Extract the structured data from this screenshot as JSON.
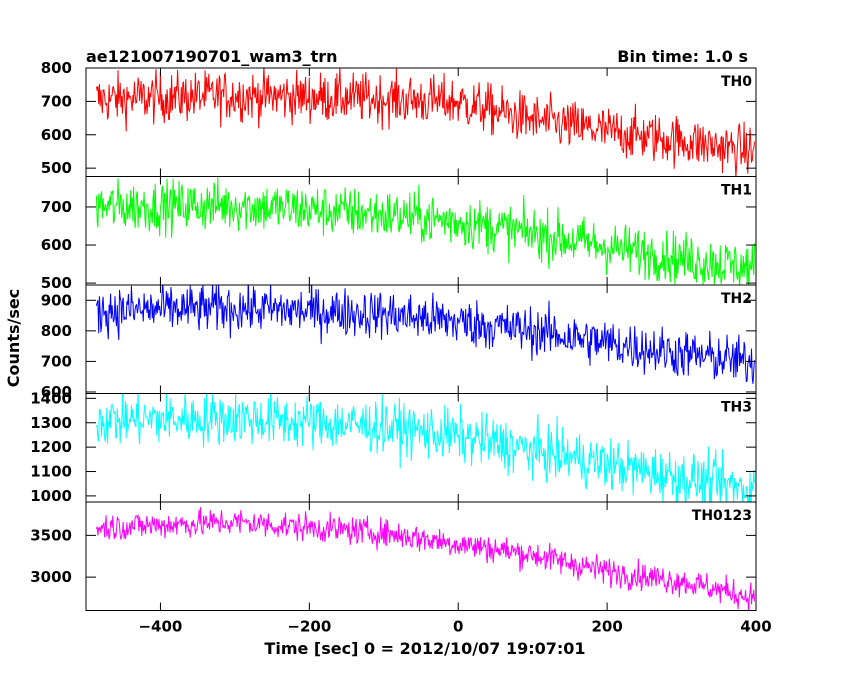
{
  "header": {
    "title": "ae121007190701_wam3_trn",
    "bin_time": "Bin time: 1.0 s"
  },
  "axes": {
    "xlabel": "Time [sec] 0 = 2012/10/07 19:07:01",
    "ylabel": "Counts/sec"
  },
  "chart_data": {
    "type": "line",
    "title": "ae121007190701_wam3_trn",
    "subtitle": "Bin time: 1.0 s",
    "xlabel": "Time [sec] 0 = 2012/10/07 19:07:01",
    "ylabel": "Counts/sec",
    "xlim": [
      -500,
      400
    ],
    "x_ticks": [
      -400,
      -200,
      0,
      200,
      400
    ],
    "x_step": 1.0,
    "grid": false,
    "panels": [
      {
        "name": "TH0",
        "color": "#ff0000",
        "ylim": [
          475,
          800
        ],
        "y_ticks": [
          500,
          600,
          700,
          800
        ],
        "noise": 38,
        "trend": [
          [
            -500,
            705
          ],
          [
            -300,
            718
          ],
          [
            -100,
            708
          ],
          [
            0,
            698
          ],
          [
            100,
            645
          ],
          [
            200,
            610
          ],
          [
            300,
            582
          ],
          [
            400,
            548
          ]
        ]
      },
      {
        "name": "TH1",
        "color": "#00ff00",
        "ylim": [
          495,
          780
        ],
        "y_ticks": [
          500,
          600,
          700
        ],
        "noise": 34,
        "trend": [
          [
            -500,
            700
          ],
          [
            -300,
            705
          ],
          [
            -100,
            680
          ],
          [
            0,
            662
          ],
          [
            100,
            630
          ],
          [
            200,
            595
          ],
          [
            300,
            565
          ],
          [
            400,
            540
          ]
        ]
      },
      {
        "name": "TH2",
        "color": "#0000ff",
        "ylim": [
          595,
          950
        ],
        "y_ticks": [
          600,
          700,
          800,
          900
        ],
        "noise": 40,
        "trend": [
          [
            -500,
            865
          ],
          [
            -300,
            875
          ],
          [
            -100,
            855
          ],
          [
            0,
            830
          ],
          [
            100,
            800
          ],
          [
            200,
            760
          ],
          [
            300,
            725
          ],
          [
            400,
            695
          ]
        ]
      },
      {
        "name": "TH3",
        "color": "#00ffff",
        "ylim": [
          975,
          1420
        ],
        "y_ticks": [
          1000,
          1100,
          1200,
          1300,
          1400
        ],
        "noise": 55,
        "trend": [
          [
            -500,
            1310
          ],
          [
            -300,
            1320
          ],
          [
            -100,
            1285
          ],
          [
            0,
            1245
          ],
          [
            100,
            1185
          ],
          [
            200,
            1130
          ],
          [
            300,
            1075
          ],
          [
            400,
            1025
          ]
        ]
      },
      {
        "name": "TH0123",
        "color": "#ff00ff",
        "ylim": [
          2600,
          3900
        ],
        "y_ticks": [
          3000,
          3500
        ],
        "noise": 85,
        "trend": [
          [
            -500,
            3590
          ],
          [
            -300,
            3660
          ],
          [
            -100,
            3530
          ],
          [
            0,
            3400
          ],
          [
            100,
            3270
          ],
          [
            200,
            3070
          ],
          [
            300,
            2950
          ],
          [
            400,
            2750
          ]
        ]
      }
    ]
  }
}
